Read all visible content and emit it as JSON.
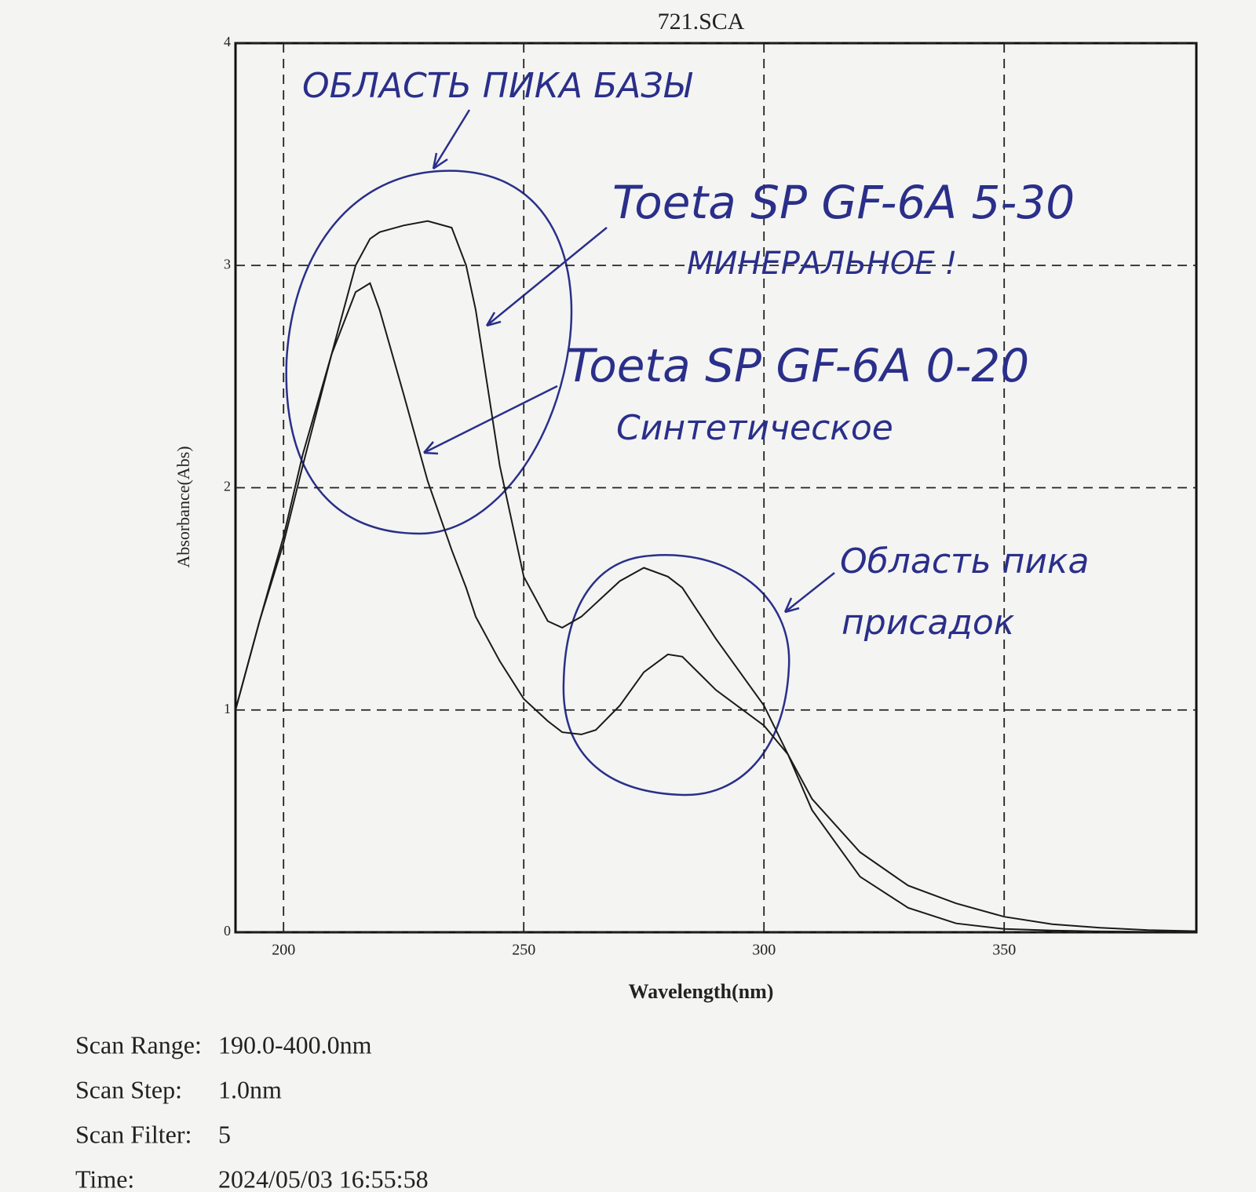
{
  "chart_data": {
    "type": "line",
    "title": "721.SCA",
    "x_label": "Wavelength(nm)",
    "y_label": "Absorbance(Abs)",
    "x": [
      190,
      195,
      200,
      204,
      210,
      215,
      218,
      220,
      225,
      230,
      235,
      238,
      240,
      245,
      250,
      255,
      258,
      262,
      265,
      270,
      275,
      280,
      283,
      290,
      300,
      305,
      310,
      320,
      330,
      340,
      350,
      360,
      370,
      380,
      390
    ],
    "series": [
      {
        "color": "#1a1a1a",
        "values": [
          1.0,
          1.4,
          1.75,
          2.1,
          2.6,
          3.0,
          3.12,
          3.15,
          3.18,
          3.2,
          3.17,
          3.0,
          2.8,
          2.1,
          1.6,
          1.4,
          1.37,
          1.42,
          1.48,
          1.58,
          1.64,
          1.6,
          1.55,
          1.32,
          1.02,
          0.8,
          0.55,
          0.25,
          0.11,
          0.04,
          0.015,
          0.008,
          0.004,
          0.002,
          0
        ]
      },
      {
        "color": "#1a1a1a",
        "values": [
          1.0,
          1.4,
          1.78,
          2.15,
          2.6,
          2.88,
          2.92,
          2.8,
          2.42,
          2.03,
          1.72,
          1.55,
          1.42,
          1.22,
          1.05,
          0.95,
          0.9,
          0.89,
          0.91,
          1.02,
          1.17,
          1.25,
          1.24,
          1.09,
          0.93,
          0.8,
          0.6,
          0.36,
          0.21,
          0.13,
          0.07,
          0.036,
          0.02,
          0.01,
          0.005
        ]
      }
    ],
    "xlim": [
      190,
      390
    ],
    "ylim": [
      0,
      4
    ],
    "xticks": [
      200,
      250,
      300,
      350
    ],
    "yticks": [
      0,
      1,
      2,
      3,
      4
    ],
    "grid": true,
    "annotations": [
      "ОБЛАСТЬ ПИКА БАЗЫ",
      "Toeta SP GF-6A 5-30",
      "МИНЕРАЛЬНОЕ !",
      "Toeta SP GF-6A 0-20",
      "Синтетическое",
      "Область пика",
      "присадок"
    ]
  },
  "scan_info": [
    {
      "label": "Scan Range:",
      "value": "190.0-400.0nm"
    },
    {
      "label": "Scan Step:",
      "value": "1.0nm"
    },
    {
      "label": "Scan Filter:",
      "value": "5"
    },
    {
      "label": "Time:",
      "value": "2024/05/03 16:55:58"
    }
  ]
}
